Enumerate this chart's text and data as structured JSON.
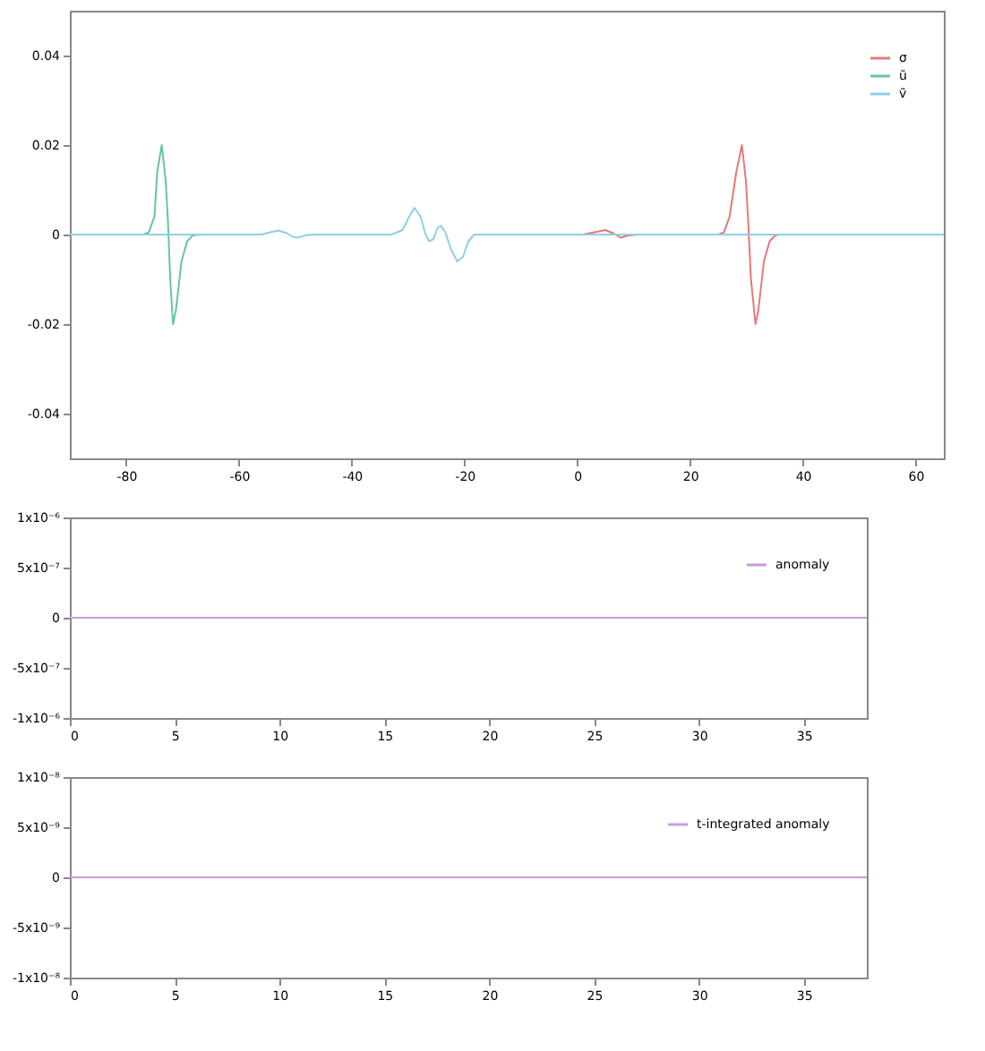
{
  "chart_data": [
    {
      "type": "line",
      "xlim": [
        -90,
        65
      ],
      "xticks": [
        -80,
        -60,
        -40,
        -20,
        0,
        20,
        40,
        60
      ],
      "ylim": [
        -0.05,
        0.05
      ],
      "yticks": [
        -0.04,
        -0.02,
        0,
        0.02,
        0.04
      ],
      "grid": false,
      "legend": "top right",
      "series": [
        {
          "name": "σ",
          "color": "#e87878",
          "x": [
            1,
            3,
            5,
            6.5,
            7.7,
            9,
            11,
            15,
            25,
            26,
            27,
            28.2,
            29.2,
            29.9,
            30.3,
            30.8,
            31.6,
            32.1,
            33.1,
            34.1,
            35.1,
            36
          ],
          "values": [
            0,
            0.0005,
            0.001,
            0.0002,
            -0.0007,
            -0.0002,
            0,
            null,
            0,
            0.0005,
            0.004,
            0.014,
            0.02,
            0.012,
            0.003,
            -0.01,
            -0.02,
            -0.017,
            -0.006,
            -0.0015,
            -0.0002,
            0
          ]
        },
        {
          "name": "ũ",
          "color": "#66c4a4",
          "x": [
            -77,
            -76,
            -75,
            -74.5,
            -73.7,
            -73,
            -72.6,
            -72.2,
            -71.7,
            -71.2,
            -70.2,
            -69.2,
            -68.2,
            -67
          ],
          "values": [
            0,
            0.0005,
            0.004,
            0.014,
            0.02,
            0.012,
            0.003,
            -0.01,
            -0.02,
            -0.017,
            -0.006,
            -0.0015,
            -0.0002,
            0
          ]
        },
        {
          "name": "ṽ",
          "color": "#90cfe2",
          "x": [
            -90,
            -56,
            -54.5,
            -53,
            -51.5,
            -50.5,
            -49.6,
            -48,
            -46,
            -33,
            -31,
            -29.8,
            -28.9,
            -27.8,
            -26.9,
            -26.3,
            -25.5,
            -24.8,
            -24.2,
            -23.4,
            -22.5,
            -21.3,
            -20.3,
            -19.3,
            -18.3,
            65
          ],
          "values": [
            0,
            0,
            0.0005,
            0.0009,
            0.0003,
            -0.0005,
            -0.0007,
            -0.0001,
            0,
            0,
            0.001,
            0.004,
            0.006,
            0.004,
            0,
            -0.0015,
            -0.001,
            0.0015,
            0.002,
            0.0005,
            -0.003,
            -0.006,
            -0.005,
            -0.0015,
            0,
            0
          ]
        }
      ]
    },
    {
      "type": "line",
      "xlim": [
        0,
        38
      ],
      "xticks": [
        0,
        5,
        10,
        15,
        20,
        25,
        30,
        35
      ],
      "ylim": [
        -1e-06,
        1e-06
      ],
      "yticks": [
        {
          "value": -1e-06,
          "label": "-1x10⁻⁶"
        },
        {
          "value": -5e-07,
          "label": "-5x10⁻⁷"
        },
        0,
        {
          "value": 5e-07,
          "label": "5x10⁻⁷"
        },
        {
          "value": 1e-06,
          "label": "1x10⁻⁶"
        }
      ],
      "grid": false,
      "legend": "top right",
      "series": [
        {
          "name": "anomaly",
          "color": "#cc99dd",
          "x": [
            0,
            38
          ],
          "values": [
            0,
            0
          ]
        }
      ]
    },
    {
      "type": "line",
      "xlim": [
        0,
        38
      ],
      "xticks": [
        0,
        5,
        10,
        15,
        20,
        25,
        30,
        35
      ],
      "ylim": [
        -1e-08,
        1e-08
      ],
      "yticks": [
        {
          "value": -1e-08,
          "label": "-1x10⁻⁸"
        },
        {
          "value": -5e-09,
          "label": "-5x10⁻⁹"
        },
        0,
        {
          "value": 5e-09,
          "label": "5x10⁻⁹"
        },
        {
          "value": 1e-08,
          "label": "1x10⁻⁸"
        }
      ],
      "grid": false,
      "legend": "top right",
      "series": [
        {
          "name": "t-integrated anomaly",
          "color": "#cc99dd",
          "x": [
            0,
            38
          ],
          "values": [
            0,
            0
          ]
        }
      ]
    }
  ]
}
